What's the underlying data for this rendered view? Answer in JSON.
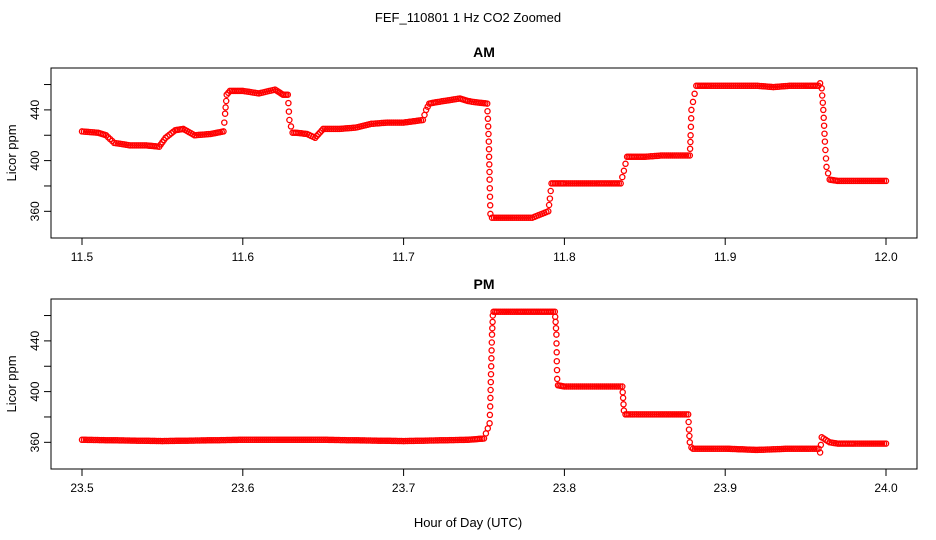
{
  "figure": {
    "title": "FEF_110801  1 Hz CO2 Zoomed",
    "xlabel": "Hour of Day (UTC)",
    "colors": {
      "points": "#ff0000",
      "axes": "#000000",
      "background": "#ffffff"
    }
  },
  "chart_data": [
    {
      "type": "scatter",
      "title": "AM",
      "xlabel": "",
      "ylabel": "Licor ppm",
      "xlim": [
        11.5,
        12.0
      ],
      "ylim": [
        350,
        462
      ],
      "xticks": [
        "11.5",
        "11.6",
        "11.7",
        "11.8",
        "11.9",
        "12.0"
      ],
      "yticks": [
        "360",
        "400",
        "440"
      ],
      "grid": false,
      "series": [
        {
          "x": [
            11.5,
            11.51,
            11.515,
            11.52,
            11.53,
            11.54,
            11.548,
            11.552,
            11.558,
            11.563,
            11.57,
            11.58,
            11.588,
            11.589,
            11.59,
            11.592,
            11.6,
            11.61,
            11.62,
            11.625,
            11.628,
            11.629,
            11.631,
            11.633,
            11.64,
            11.645,
            11.65,
            11.66,
            11.67,
            11.68,
            11.69,
            11.7,
            11.712,
            11.714,
            11.716,
            11.72,
            11.73,
            11.735,
            11.74,
            11.745,
            11.752,
            11.753,
            11.7535,
            11.754,
            11.755,
            11.76,
            11.77,
            11.78,
            11.79,
            11.791,
            11.792,
            11.795,
            11.8,
            11.81,
            11.82,
            11.835,
            11.837,
            11.839,
            11.842,
            11.85,
            11.86,
            11.878,
            11.8785,
            11.879,
            11.882,
            11.89,
            11.9,
            11.91,
            11.92,
            11.93,
            11.94,
            11.95,
            11.958,
            11.959,
            11.96,
            11.961,
            11.962,
            11.963,
            11.965,
            11.97,
            11.98,
            11.99,
            12.0
          ],
          "y": [
            423,
            422,
            420,
            414,
            412,
            412,
            411,
            418,
            424,
            425,
            420,
            421,
            423,
            437,
            452,
            455,
            455,
            453,
            456,
            452,
            452,
            432,
            422,
            422,
            421,
            418,
            425,
            425,
            426,
            429,
            430,
            430,
            432,
            440,
            445,
            446,
            448,
            449,
            447,
            446,
            445,
            415,
            385,
            358,
            355,
            355,
            355,
            355,
            360,
            370,
            382,
            382,
            382,
            382,
            382,
            382,
            392,
            403,
            403,
            403,
            404,
            404,
            420,
            440,
            459,
            459,
            459,
            459,
            459,
            458,
            459,
            459,
            459,
            461,
            457,
            440,
            415,
            395,
            385,
            384,
            384,
            384,
            384
          ]
        }
      ]
    },
    {
      "type": "scatter",
      "title": "PM",
      "xlabel": "",
      "ylabel": "Licor ppm",
      "xlim": [
        23.5,
        24.0
      ],
      "ylim": [
        350,
        462
      ],
      "xticks": [
        "23.5",
        "23.6",
        "23.7",
        "23.8",
        "23.9",
        "24.0"
      ],
      "yticks": [
        "360",
        "400",
        "440"
      ],
      "grid": false,
      "series": [
        {
          "x": [
            23.5,
            23.55,
            23.6,
            23.65,
            23.7,
            23.74,
            23.75,
            23.7535,
            23.754,
            23.7545,
            23.755,
            23.7555,
            23.756,
            23.758,
            23.77,
            23.785,
            23.794,
            23.7945,
            23.795,
            23.7955,
            23.796,
            23.8,
            23.82,
            23.836,
            23.8365,
            23.837,
            23.838,
            23.84,
            23.86,
            23.877,
            23.8775,
            23.878,
            23.879,
            23.88,
            23.9,
            23.92,
            23.94,
            23.958,
            23.959,
            23.96,
            23.965,
            23.97,
            23.98,
            24.0
          ],
          "y": [
            362,
            361,
            362,
            362,
            361,
            362,
            363,
            375,
            395,
            420,
            445,
            460,
            463,
            463,
            463,
            463,
            463,
            455,
            445,
            410,
            405,
            404,
            404,
            404,
            395,
            385,
            382,
            382,
            382,
            382,
            370,
            360,
            356,
            355,
            355,
            354,
            355,
            355,
            352,
            364,
            360,
            359,
            359,
            359
          ]
        }
      ]
    }
  ]
}
